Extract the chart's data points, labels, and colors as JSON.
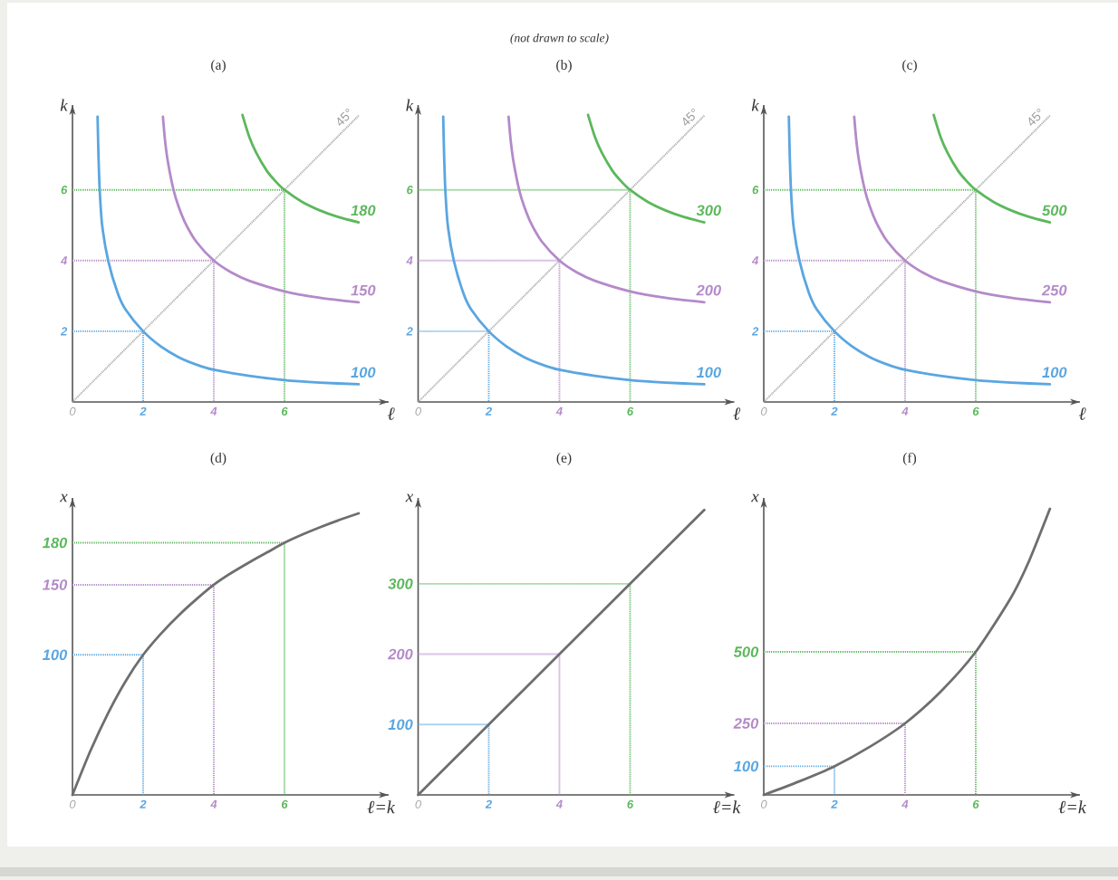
{
  "chart_data": [
    {
      "type": "line",
      "title": "(a)",
      "xlabel": "ℓ",
      "ylabel": "k",
      "xlim": [
        0,
        8.95
      ],
      "ylim": [
        0,
        8.4
      ],
      "xticks": [
        0,
        2,
        4,
        6
      ],
      "yticks": [
        2,
        4,
        6
      ],
      "series": [
        {
          "color": "#5aa6e1",
          "x": [
            0,
            2,
            2
          ],
          "values": [
            2,
            2,
            0
          ],
          "line_style": "dotted"
        },
        {
          "color": "#b48ac9",
          "x": [
            0,
            4,
            4
          ],
          "values": [
            4,
            4,
            0
          ],
          "line_style": "dotted"
        },
        {
          "color": "#5cb85c",
          "x": [
            0,
            6,
            6
          ],
          "values": [
            6,
            6,
            0
          ],
          "line_style": "dotted"
        },
        {
          "name": "45°",
          "color": "#9d9d9d",
          "x": [
            0,
            8.1
          ],
          "values": [
            0,
            8.1
          ],
          "line_style": "dotted"
        },
        {
          "name": "100",
          "color": "#5aa6e1",
          "x": [
            0.71,
            0.735,
            0.77,
            0.84,
            1.01,
            1.28,
            1.5,
            2,
            2.5,
            3,
            3.5,
            4,
            5,
            6,
            7,
            8.1
          ],
          "values": [
            8.07,
            7,
            6,
            5,
            4,
            3.08,
            2.62,
            2,
            1.57,
            1.27,
            1.06,
            0.91,
            0.74,
            0.62,
            0.55,
            0.5
          ]
        },
        {
          "name": "150",
          "color": "#b48ac9",
          "x": [
            2.56,
            2.62,
            2.7,
            2.86,
            3.0,
            3.2,
            3.5,
            4,
            4.5,
            5,
            6,
            7,
            8.1
          ],
          "values": [
            8.07,
            7.4,
            6.8,
            6,
            5.54,
            5.05,
            4.54,
            4,
            3.66,
            3.43,
            3.13,
            2.95,
            2.82
          ]
        },
        {
          "name": "180",
          "color": "#5cb85c",
          "x": [
            4.81,
            5.0,
            5.2,
            5.5,
            5.75,
            6,
            6.5,
            7,
            7.5,
            8.1
          ],
          "values": [
            8.12,
            7.51,
            7.05,
            6.54,
            6.24,
            6,
            5.66,
            5.42,
            5.24,
            5.08
          ]
        }
      ]
    },
    {
      "type": "line",
      "title": "(b)",
      "annotations": [
        "(not drawn to scale)"
      ],
      "xlabel": "ℓ",
      "ylabel": "k",
      "xlim": [
        0,
        8.95
      ],
      "ylim": [
        0,
        8.4
      ],
      "xticks": [
        0,
        2,
        4,
        6
      ],
      "yticks": [
        2,
        4,
        6
      ],
      "series": [
        {
          "color": "#5aa6e1",
          "x": [
            0,
            2,
            2
          ],
          "values": [
            2,
            2,
            0
          ],
          "line_style": "dotted"
        },
        {
          "color": "#b48ac9",
          "x": [
            0,
            4,
            4
          ],
          "values": [
            4,
            4,
            0
          ],
          "line_style": "dotted"
        },
        {
          "color": "#5cb85c",
          "x": [
            0,
            6,
            6
          ],
          "values": [
            6,
            6,
            0
          ],
          "line_style": "dotted"
        },
        {
          "name": "45°",
          "color": "#9d9d9d",
          "x": [
            0,
            8.1
          ],
          "values": [
            0,
            8.1
          ],
          "line_style": "dotted"
        },
        {
          "name": "100",
          "color": "#5aa6e1",
          "x": [
            0.71,
            0.735,
            0.77,
            0.84,
            1.01,
            1.28,
            1.5,
            2,
            2.5,
            3,
            3.5,
            4,
            5,
            6,
            7,
            8.1
          ],
          "values": [
            8.07,
            7,
            6,
            5,
            4,
            3.08,
            2.62,
            2,
            1.57,
            1.27,
            1.06,
            0.91,
            0.74,
            0.62,
            0.55,
            0.5
          ]
        },
        {
          "name": "200",
          "color": "#b48ac9",
          "x": [
            2.56,
            2.62,
            2.7,
            2.86,
            3.0,
            3.2,
            3.5,
            4,
            4.5,
            5,
            6,
            7,
            8.1
          ],
          "values": [
            8.07,
            7.4,
            6.8,
            6,
            5.54,
            5.05,
            4.54,
            4,
            3.66,
            3.43,
            3.13,
            2.95,
            2.82
          ]
        },
        {
          "name": "300",
          "color": "#5cb85c",
          "x": [
            4.81,
            5.0,
            5.2,
            5.5,
            5.75,
            6,
            6.5,
            7,
            7.5,
            8.1
          ],
          "values": [
            8.12,
            7.51,
            7.05,
            6.54,
            6.24,
            6,
            5.66,
            5.42,
            5.24,
            5.08
          ]
        }
      ]
    },
    {
      "type": "line",
      "title": "(c)",
      "xlabel": "ℓ",
      "ylabel": "k",
      "xlim": [
        0,
        8.95
      ],
      "ylim": [
        0,
        8.4
      ],
      "xticks": [
        0,
        2,
        4,
        6
      ],
      "yticks": [
        2,
        4,
        6
      ],
      "series": [
        {
          "color": "#5aa6e1",
          "x": [
            0,
            2,
            2
          ],
          "values": [
            2,
            2,
            0
          ],
          "line_style": "dotted"
        },
        {
          "color": "#b48ac9",
          "x": [
            0,
            4,
            4
          ],
          "values": [
            4,
            4,
            0
          ],
          "line_style": "dotted"
        },
        {
          "color": "#5cb85c",
          "x": [
            0,
            6,
            6
          ],
          "values": [
            6,
            6,
            0
          ],
          "line_style": "dotted"
        },
        {
          "name": "45°",
          "color": "#9d9d9d",
          "x": [
            0,
            8.1
          ],
          "values": [
            0,
            8.1
          ],
          "line_style": "dotted"
        },
        {
          "name": "100",
          "color": "#5aa6e1",
          "x": [
            0.71,
            0.735,
            0.77,
            0.84,
            1.01,
            1.28,
            1.5,
            2,
            2.5,
            3,
            3.5,
            4,
            5,
            6,
            7,
            8.1
          ],
          "values": [
            8.07,
            7,
            6,
            5,
            4,
            3.08,
            2.62,
            2,
            1.57,
            1.27,
            1.06,
            0.91,
            0.74,
            0.62,
            0.55,
            0.5
          ]
        },
        {
          "name": "250",
          "color": "#b48ac9",
          "x": [
            2.56,
            2.62,
            2.7,
            2.86,
            3.0,
            3.2,
            3.5,
            4,
            4.5,
            5,
            6,
            7,
            8.1
          ],
          "values": [
            8.07,
            7.4,
            6.8,
            6,
            5.54,
            5.05,
            4.54,
            4,
            3.66,
            3.43,
            3.13,
            2.95,
            2.82
          ]
        },
        {
          "name": "500",
          "color": "#5cb85c",
          "x": [
            4.81,
            5.0,
            5.2,
            5.5,
            5.75,
            6,
            6.5,
            7,
            7.5,
            8.1
          ],
          "values": [
            8.12,
            7.51,
            7.05,
            6.54,
            6.24,
            6,
            5.66,
            5.42,
            5.24,
            5.08
          ]
        }
      ]
    },
    {
      "type": "line",
      "title": "(d)",
      "xlabel": "ℓ=k",
      "ylabel": "x",
      "xlim": [
        0,
        8.95
      ],
      "ylim": [
        0,
        212
      ],
      "xticks": [
        0,
        2,
        4,
        6
      ],
      "yticks": [
        100,
        150,
        180
      ],
      "series": [
        {
          "color": "#5aa6e1",
          "x": [
            0,
            2,
            2
          ],
          "values": [
            100,
            100,
            0
          ],
          "line_style": "dotted"
        },
        {
          "color": "#b48ac9",
          "x": [
            0,
            4,
            4
          ],
          "values": [
            150,
            150,
            0
          ],
          "line_style": "dotted"
        },
        {
          "color": "#5cb85c",
          "x": [
            0,
            6,
            6
          ],
          "values": [
            180,
            180,
            0
          ],
          "line_style": "dotted"
        },
        {
          "color": "#6e6e6e",
          "x": [
            0,
            0.5,
            1,
            1.5,
            2,
            2.5,
            3,
            3.5,
            4,
            4.5,
            5,
            5.5,
            6,
            6.5,
            7,
            7.5,
            8.1
          ],
          "values": [
            0,
            31,
            58,
            81,
            100,
            115,
            128,
            139.5,
            150,
            158.5,
            166,
            173,
            180,
            185.8,
            191,
            195.8,
            201
          ]
        }
      ]
    },
    {
      "type": "line",
      "title": "(e)",
      "xlabel": "ℓ=k",
      "ylabel": "x",
      "xlim": [
        0,
        8.95
      ],
      "ylim": [
        0,
        422
      ],
      "xticks": [
        0,
        2,
        4,
        6
      ],
      "yticks": [
        100,
        200,
        300
      ],
      "series": [
        {
          "color": "#5aa6e1",
          "x": [
            0,
            2,
            2
          ],
          "values": [
            100,
            100,
            0
          ],
          "line_style": "dotted"
        },
        {
          "color": "#b48ac9",
          "x": [
            0,
            4,
            4
          ],
          "values": [
            200,
            200,
            0
          ],
          "line_style": "dotted"
        },
        {
          "color": "#5cb85c",
          "x": [
            0,
            6,
            6
          ],
          "values": [
            300,
            300,
            0
          ],
          "line_style": "dotted"
        },
        {
          "color": "#6e6e6e",
          "x": [
            0,
            2,
            4,
            6,
            8.1
          ],
          "values": [
            0,
            100,
            200,
            300,
            405
          ]
        }
      ]
    },
    {
      "type": "line",
      "title": "(f)",
      "xlabel": "ℓ=k",
      "ylabel": "x",
      "xlim": [
        0,
        8.95
      ],
      "ylim": [
        0,
        1038
      ],
      "xticks": [
        0,
        2,
        4,
        6
      ],
      "yticks": [
        100,
        250,
        500
      ],
      "series": [
        {
          "color": "#5aa6e1",
          "x": [
            0,
            2,
            2
          ],
          "values": [
            100,
            100,
            0
          ],
          "line_style": "dotted"
        },
        {
          "color": "#b48ac9",
          "x": [
            0,
            4,
            4
          ],
          "values": [
            250,
            250,
            0
          ],
          "line_style": "dotted"
        },
        {
          "color": "#5cb85c",
          "x": [
            0,
            6,
            6
          ],
          "values": [
            500,
            500,
            0
          ],
          "line_style": "dotted"
        },
        {
          "color": "#6e6e6e",
          "x": [
            0,
            1,
            2,
            3,
            4,
            5,
            6,
            7,
            7.5,
            8.1
          ],
          "values": [
            0,
            47,
            100,
            168,
            250,
            360,
            500,
            690,
            815,
            1000
          ]
        }
      ]
    }
  ]
}
